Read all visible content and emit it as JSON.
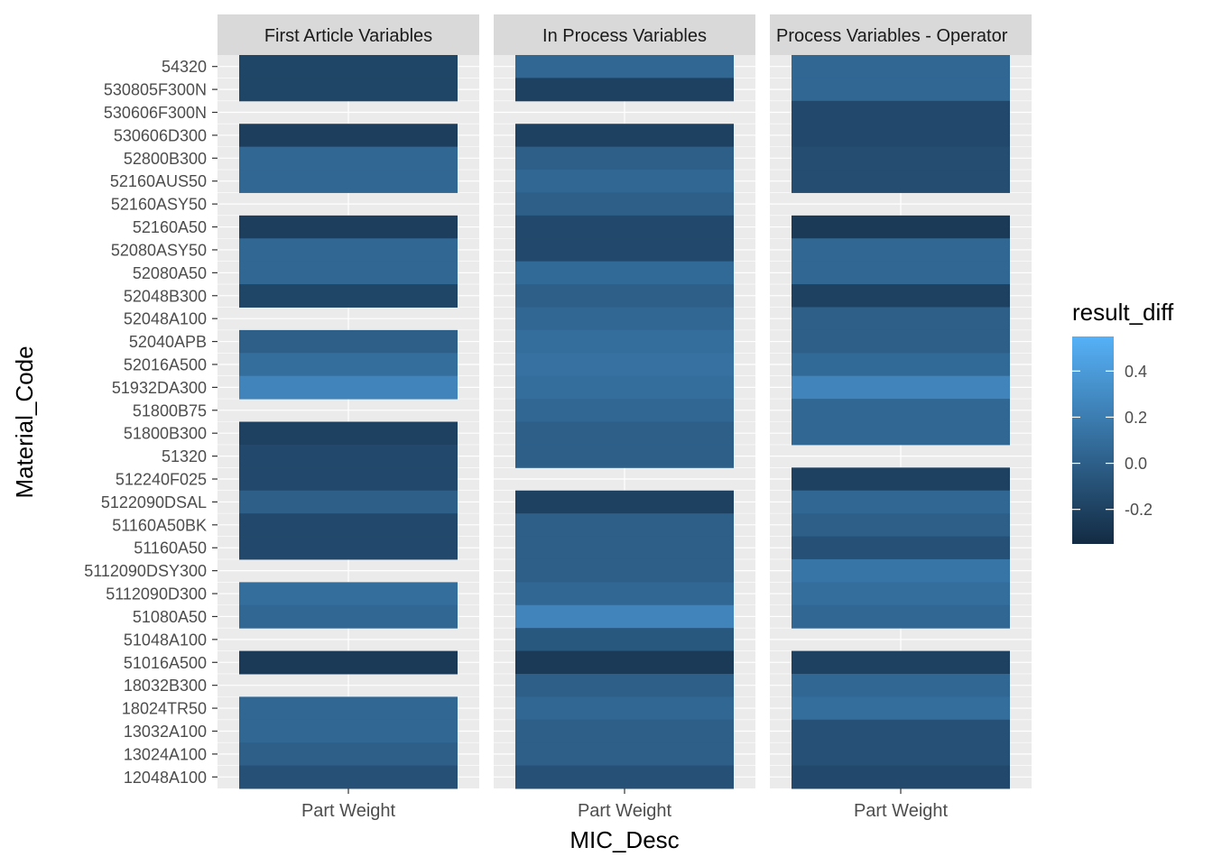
{
  "chart_data": {
    "type": "heatmap",
    "xlabel": "MIC_Desc",
    "ylabel": "Material_Code",
    "x_categories": [
      "Part Weight"
    ],
    "y_categories": [
      "54320",
      "530805F300N",
      "530606F300N",
      "530606D300",
      "52800B300",
      "52160AUS50",
      "52160ASY50",
      "52160A50",
      "52080ASY50",
      "52080A50",
      "52048B300",
      "52048A100",
      "52040APB",
      "52016A500",
      "51932DA300",
      "51800B75",
      "51800B300",
      "51320",
      "512240F025",
      "5122090DSAL",
      "51160A50BK",
      "51160A50",
      "5112090DSY300",
      "5112090D300",
      "51080A50",
      "51048A100",
      "51016A500",
      "18032B300",
      "18024TR50",
      "13032A100",
      "13024A100",
      "12048A100"
    ],
    "facets": [
      {
        "label": "First Article Variables",
        "values": [
          -0.17,
          -0.17,
          null,
          -0.22,
          0.05,
          0.05,
          null,
          -0.22,
          0.05,
          0.05,
          -0.17,
          null,
          0.0,
          0.1,
          0.25,
          null,
          -0.2,
          -0.15,
          -0.15,
          0.0,
          -0.15,
          -0.15,
          null,
          0.1,
          0.05,
          null,
          -0.25,
          null,
          0.05,
          0.05,
          0.0,
          -0.1
        ]
      },
      {
        "label": "In Process Variables",
        "values": [
          0.05,
          -0.2,
          null,
          -0.2,
          0.0,
          0.05,
          0.0,
          -0.15,
          -0.15,
          0.07,
          0.0,
          0.05,
          0.1,
          0.12,
          0.1,
          0.05,
          0.0,
          0.0,
          null,
          -0.2,
          0.0,
          0.0,
          0.0,
          0.05,
          0.25,
          -0.05,
          -0.25,
          0.0,
          0.05,
          0.0,
          0.0,
          -0.1
        ]
      },
      {
        "label": "Process Variables - Operator",
        "values": [
          0.05,
          0.05,
          -0.15,
          -0.15,
          -0.12,
          -0.12,
          null,
          -0.25,
          0.05,
          0.05,
          -0.2,
          0.0,
          0.0,
          0.07,
          0.25,
          0.05,
          0.05,
          null,
          -0.2,
          0.05,
          0.0,
          -0.1,
          0.15,
          0.1,
          0.05,
          null,
          -0.2,
          0.05,
          0.1,
          -0.1,
          -0.1,
          -0.15
        ]
      }
    ],
    "legend": {
      "title": "result_diff",
      "placement": "right",
      "range": [
        -0.35,
        0.55
      ],
      "breaks": [
        0.4,
        0.2,
        0.0,
        -0.2
      ],
      "labels": [
        "0.4",
        "0.2",
        "0.0",
        "-0.2"
      ],
      "low_color": "#132B43",
      "high_color": "#56B1F7"
    },
    "panel_bg": "#ebebeb",
    "strip_bg": "#d9d9d9",
    "grid_color": "#ffffff"
  }
}
